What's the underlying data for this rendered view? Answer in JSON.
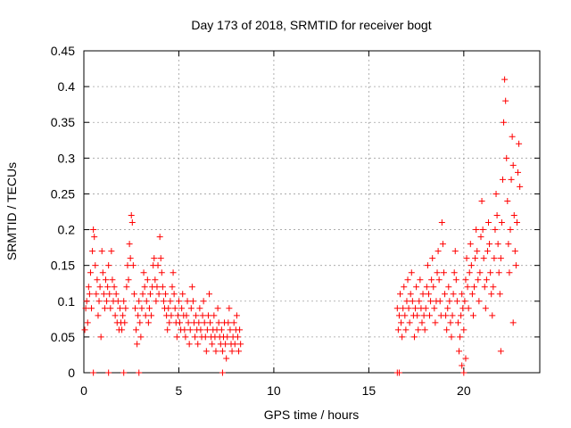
{
  "chart_data": {
    "type": "scatter",
    "title": "Day 173 of 2018, SRMTID for receiver bogt",
    "xlabel": "GPS time / hours",
    "ylabel": "SRMTID / TECUs",
    "xlim": [
      0,
      24
    ],
    "ylim": [
      0,
      0.45
    ],
    "x_ticks": [
      0,
      5,
      10,
      15,
      20
    ],
    "x_tick_labels": [
      "0",
      "5",
      "10",
      "15",
      "20"
    ],
    "y_ticks": [
      0,
      0.05,
      0.1,
      0.15,
      0.2,
      0.25,
      0.3,
      0.35,
      0.4,
      0.45
    ],
    "y_tick_labels": [
      "0",
      "0.05",
      "0.1",
      "0.15",
      "0.2",
      "0.25",
      "0.3",
      "0.35",
      "0.4",
      "0.45"
    ],
    "grid": true,
    "marker": "plus",
    "color": "#ff0000",
    "series": [
      {
        "name": "SRMTID",
        "points": [
          [
            0.05,
            0.06
          ],
          [
            0.1,
            0.09
          ],
          [
            0.15,
            0.1
          ],
          [
            0.2,
            0.07
          ],
          [
            0.25,
            0.12
          ],
          [
            0.3,
            0.11
          ],
          [
            0.35,
            0.14
          ],
          [
            0.4,
            0.09
          ],
          [
            0.45,
            0.17
          ],
          [
            0.5,
            0.2
          ],
          [
            0.55,
            0.19
          ],
          [
            0.6,
            0.15
          ],
          [
            0.65,
            0.11
          ],
          [
            0.7,
            0.13
          ],
          [
            0.75,
            0.08
          ],
          [
            0.8,
            0.1
          ],
          [
            0.85,
            0.12
          ],
          [
            0.9,
            0.05
          ],
          [
            0.95,
            0.17
          ],
          [
            1.0,
            0.14
          ],
          [
            1.05,
            0.11
          ],
          [
            1.1,
            0.09
          ],
          [
            1.15,
            0.13
          ],
          [
            1.2,
            0.1
          ],
          [
            1.25,
            0.12
          ],
          [
            1.3,
            0.15
          ],
          [
            1.35,
            0.11
          ],
          [
            1.4,
            0.09
          ],
          [
            1.45,
            0.17
          ],
          [
            1.5,
            0.13
          ],
          [
            1.55,
            0.1
          ],
          [
            1.6,
            0.12
          ],
          [
            1.65,
            0.08
          ],
          [
            1.7,
            0.11
          ],
          [
            1.75,
            0.07
          ],
          [
            1.8,
            0.1
          ],
          [
            1.85,
            0.06
          ],
          [
            1.9,
            0.09
          ],
          [
            1.95,
            0.07
          ],
          [
            2.0,
            0.06
          ],
          [
            2.05,
            0.08
          ],
          [
            2.1,
            0.1
          ],
          [
            2.15,
            0.07
          ],
          [
            2.2,
            0.09
          ],
          [
            2.25,
            0.12
          ],
          [
            2.3,
            0.15
          ],
          [
            2.35,
            0.13
          ],
          [
            2.4,
            0.18
          ],
          [
            2.45,
            0.16
          ],
          [
            2.5,
            0.22
          ],
          [
            2.55,
            0.21
          ],
          [
            2.6,
            0.15
          ],
          [
            2.65,
            0.11
          ],
          [
            2.7,
            0.09
          ],
          [
            2.75,
            0.06
          ],
          [
            2.8,
            0.04
          ],
          [
            2.85,
            0.08
          ],
          [
            2.9,
            0.1
          ],
          [
            2.95,
            0.07
          ],
          [
            3.0,
            0.05
          ],
          [
            3.05,
            0.09
          ],
          [
            3.1,
            0.11
          ],
          [
            3.15,
            0.14
          ],
          [
            3.2,
            0.12
          ],
          [
            3.25,
            0.08
          ],
          [
            3.3,
            0.1
          ],
          [
            3.35,
            0.13
          ],
          [
            3.4,
            0.07
          ],
          [
            3.45,
            0.09
          ],
          [
            3.5,
            0.11
          ],
          [
            3.55,
            0.08
          ],
          [
            3.6,
            0.12
          ],
          [
            3.65,
            0.15
          ],
          [
            3.7,
            0.16
          ],
          [
            3.75,
            0.13
          ],
          [
            3.8,
            0.1
          ],
          [
            3.85,
            0.12
          ],
          [
            3.9,
            0.15
          ],
          [
            3.95,
            0.11
          ],
          [
            4.0,
            0.19
          ],
          [
            4.05,
            0.16
          ],
          [
            4.1,
            0.14
          ],
          [
            4.15,
            0.12
          ],
          [
            4.2,
            0.1
          ],
          [
            4.25,
            0.09
          ],
          [
            4.3,
            0.11
          ],
          [
            4.35,
            0.08
          ],
          [
            4.4,
            0.06
          ],
          [
            4.45,
            0.09
          ],
          [
            4.5,
            0.07
          ],
          [
            4.55,
            0.1
          ],
          [
            4.6,
            0.08
          ],
          [
            4.65,
            0.12
          ],
          [
            4.7,
            0.14
          ],
          [
            4.75,
            0.11
          ],
          [
            4.8,
            0.09
          ],
          [
            4.85,
            0.07
          ],
          [
            4.9,
            0.05
          ],
          [
            4.95,
            0.08
          ],
          [
            5.0,
            0.1
          ],
          [
            5.05,
            0.07
          ],
          [
            5.1,
            0.06
          ],
          [
            5.15,
            0.09
          ],
          [
            5.2,
            0.11
          ],
          [
            5.25,
            0.08
          ],
          [
            5.3,
            0.06
          ],
          [
            5.35,
            0.05
          ],
          [
            5.4,
            0.08
          ],
          [
            5.45,
            0.1
          ],
          [
            5.5,
            0.07
          ],
          [
            5.55,
            0.04
          ],
          [
            5.6,
            0.06
          ],
          [
            5.65,
            0.09
          ],
          [
            5.7,
            0.12
          ],
          [
            5.75,
            0.1
          ],
          [
            5.8,
            0.07
          ],
          [
            5.85,
            0.05
          ],
          [
            5.9,
            0.08
          ],
          [
            5.95,
            0.06
          ],
          [
            6.0,
            0.04
          ],
          [
            6.05,
            0.07
          ],
          [
            6.1,
            0.09
          ],
          [
            6.15,
            0.06
          ],
          [
            6.2,
            0.05
          ],
          [
            6.25,
            0.08
          ],
          [
            6.3,
            0.1
          ],
          [
            6.35,
            0.07
          ],
          [
            6.4,
            0.05
          ],
          [
            6.45,
            0.03
          ],
          [
            6.5,
            0.06
          ],
          [
            6.55,
            0.08
          ],
          [
            6.6,
            0.11
          ],
          [
            6.65,
            0.07
          ],
          [
            6.7,
            0.05
          ],
          [
            6.75,
            0.04
          ],
          [
            6.8,
            0.06
          ],
          [
            6.85,
            0.08
          ],
          [
            6.9,
            0.05
          ],
          [
            6.95,
            0.03
          ],
          [
            7.0,
            0.06
          ],
          [
            7.05,
            0.09
          ],
          [
            7.1,
            0.07
          ],
          [
            7.15,
            0.05
          ],
          [
            7.2,
            0.04
          ],
          [
            7.25,
            0.06
          ],
          [
            7.3,
            0.03
          ],
          [
            7.35,
            0.05
          ],
          [
            7.4,
            0.07
          ],
          [
            7.45,
            0.04
          ],
          [
            7.5,
            0.02
          ],
          [
            7.55,
            0.05
          ],
          [
            7.6,
            0.07
          ],
          [
            7.65,
            0.09
          ],
          [
            7.7,
            0.06
          ],
          [
            7.75,
            0.04
          ],
          [
            7.8,
            0.03
          ],
          [
            7.85,
            0.05
          ],
          [
            7.9,
            0.07
          ],
          [
            7.95,
            0.04
          ],
          [
            8.0,
            0.06
          ],
          [
            8.05,
            0.08
          ],
          [
            8.1,
            0.05
          ],
          [
            8.15,
            0.03
          ],
          [
            8.2,
            0.06
          ],
          [
            8.25,
            0.04
          ],
          [
            0.5,
            0.0
          ],
          [
            1.3,
            0.0
          ],
          [
            2.1,
            0.0
          ],
          [
            2.9,
            0.0
          ],
          [
            7.3,
            0.0
          ],
          [
            16.5,
            0.0
          ],
          [
            16.6,
            0.0
          ],
          [
            16.5,
            0.09
          ],
          [
            16.55,
            0.06
          ],
          [
            16.6,
            0.08
          ],
          [
            16.65,
            0.11
          ],
          [
            16.7,
            0.07
          ],
          [
            16.75,
            0.05
          ],
          [
            16.8,
            0.09
          ],
          [
            16.85,
            0.12
          ],
          [
            16.9,
            0.08
          ],
          [
            16.95,
            0.06
          ],
          [
            17.0,
            0.1
          ],
          [
            17.05,
            0.13
          ],
          [
            17.1,
            0.09
          ],
          [
            17.15,
            0.07
          ],
          [
            17.2,
            0.11
          ],
          [
            17.25,
            0.14
          ],
          [
            17.3,
            0.1
          ],
          [
            17.35,
            0.08
          ],
          [
            17.4,
            0.05
          ],
          [
            17.45,
            0.09
          ],
          [
            17.5,
            0.12
          ],
          [
            17.55,
            0.08
          ],
          [
            17.6,
            0.06
          ],
          [
            17.65,
            0.1
          ],
          [
            17.7,
            0.13
          ],
          [
            17.75,
            0.09
          ],
          [
            17.8,
            0.07
          ],
          [
            17.85,
            0.11
          ],
          [
            17.9,
            0.08
          ],
          [
            17.95,
            0.06
          ],
          [
            18.0,
            0.09
          ],
          [
            18.05,
            0.12
          ],
          [
            18.1,
            0.15
          ],
          [
            18.15,
            0.11
          ],
          [
            18.2,
            0.08
          ],
          [
            18.25,
            0.1
          ],
          [
            18.3,
            0.13
          ],
          [
            18.35,
            0.16
          ],
          [
            18.4,
            0.12
          ],
          [
            18.45,
            0.09
          ],
          [
            18.5,
            0.07
          ],
          [
            18.55,
            0.1
          ],
          [
            18.6,
            0.14
          ],
          [
            18.65,
            0.17
          ],
          [
            18.7,
            0.13
          ],
          [
            18.75,
            0.1
          ],
          [
            18.8,
            0.08
          ],
          [
            18.85,
            0.21
          ],
          [
            18.9,
            0.18
          ],
          [
            18.95,
            0.14
          ],
          [
            19.0,
            0.11
          ],
          [
            19.05,
            0.08
          ],
          [
            19.1,
            0.06
          ],
          [
            19.15,
            0.09
          ],
          [
            19.2,
            0.12
          ],
          [
            19.25,
            0.1
          ],
          [
            19.3,
            0.07
          ],
          [
            19.35,
            0.05
          ],
          [
            19.4,
            0.08
          ],
          [
            19.45,
            0.11
          ],
          [
            19.5,
            0.14
          ],
          [
            19.55,
            0.17
          ],
          [
            19.6,
            0.13
          ],
          [
            19.65,
            0.1
          ],
          [
            19.7,
            0.07
          ],
          [
            19.75,
            0.03
          ],
          [
            19.8,
            0.05
          ],
          [
            19.85,
            0.08
          ],
          [
            19.9,
            0.11
          ],
          [
            19.95,
            0.09
          ],
          [
            20.0,
            0.06
          ],
          [
            20.05,
            0.1
          ],
          [
            20.1,
            0.13
          ],
          [
            20.15,
            0.16
          ],
          [
            20.2,
            0.12
          ],
          [
            20.25,
            0.09
          ],
          [
            20.3,
            0.14
          ],
          [
            20.35,
            0.18
          ],
          [
            20.4,
            0.15
          ],
          [
            20.45,
            0.11
          ],
          [
            20.5,
            0.08
          ],
          [
            20.55,
            0.12
          ],
          [
            20.6,
            0.16
          ],
          [
            20.65,
            0.2
          ],
          [
            20.7,
            0.17
          ],
          [
            20.75,
            0.13
          ],
          [
            20.8,
            0.1
          ],
          [
            20.85,
            0.14
          ],
          [
            20.9,
            0.19
          ],
          [
            20.95,
            0.24
          ],
          [
            21.0,
            0.2
          ],
          [
            21.05,
            0.16
          ],
          [
            21.1,
            0.12
          ],
          [
            21.15,
            0.09
          ],
          [
            21.2,
            0.13
          ],
          [
            21.25,
            0.17
          ],
          [
            21.3,
            0.21
          ],
          [
            21.35,
            0.18
          ],
          [
            21.4,
            0.14
          ],
          [
            21.45,
            0.11
          ],
          [
            21.5,
            0.08
          ],
          [
            21.55,
            0.12
          ],
          [
            21.6,
            0.16
          ],
          [
            21.65,
            0.2
          ],
          [
            21.7,
            0.25
          ],
          [
            21.75,
            0.22
          ],
          [
            21.8,
            0.18
          ],
          [
            21.85,
            0.14
          ],
          [
            21.9,
            0.11
          ],
          [
            21.95,
            0.16
          ],
          [
            22.0,
            0.21
          ],
          [
            22.05,
            0.27
          ],
          [
            22.1,
            0.35
          ],
          [
            22.15,
            0.41
          ],
          [
            22.2,
            0.38
          ],
          [
            22.25,
            0.3
          ],
          [
            22.3,
            0.24
          ],
          [
            22.35,
            0.18
          ],
          [
            22.4,
            0.14
          ],
          [
            22.45,
            0.2
          ],
          [
            22.5,
            0.27
          ],
          [
            22.55,
            0.33
          ],
          [
            22.6,
            0.29
          ],
          [
            22.65,
            0.22
          ],
          [
            22.7,
            0.17
          ],
          [
            22.75,
            0.15
          ],
          [
            22.8,
            0.21
          ],
          [
            22.85,
            0.28
          ],
          [
            22.9,
            0.32
          ],
          [
            22.95,
            0.26
          ],
          [
            20.0,
            0.0
          ],
          [
            20.1,
            0.02
          ],
          [
            19.9,
            0.01
          ],
          [
            21.95,
            0.03
          ],
          [
            22.6,
            0.07
          ]
        ]
      }
    ]
  }
}
